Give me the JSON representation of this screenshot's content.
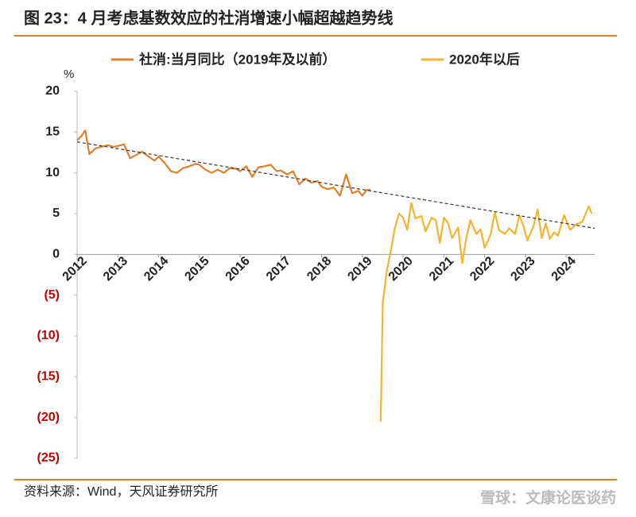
{
  "chart_data": {
    "type": "line",
    "title": "图 23：4 月考虑基数效应的社消增速小幅超越趋势线",
    "y_unit": "%",
    "source": "资料来源：Wind，天风证券研究所",
    "watermark": "雪球：文康论医谈药",
    "xlim": [
      2012,
      2024.7
    ],
    "xticks": [
      2012,
      2013,
      2014,
      2015,
      2016,
      2017,
      2018,
      2019,
      2020,
      2021,
      2022,
      2023,
      2024
    ],
    "ylim": [
      -25,
      20
    ],
    "yticks": [
      20,
      15,
      10,
      5,
      0,
      {
        "value": -5,
        "label": "(5)"
      },
      {
        "value": -10,
        "label": "(10)"
      },
      {
        "value": -15,
        "label": "(15)"
      },
      {
        "value": -20,
        "label": "(20)"
      },
      {
        "value": -25,
        "label": "(25)"
      }
    ],
    "negative_tick_color": "#c00000",
    "series": [
      {
        "name": "社消:当月同比（2019年及以前）",
        "color": "#e0802c",
        "x": [
          2012.0,
          2012.1,
          2012.2,
          2012.3,
          2012.45,
          2012.6,
          2012.75,
          2012.9,
          2013.0,
          2013.15,
          2013.3,
          2013.45,
          2013.6,
          2013.75,
          2013.9,
          2014.0,
          2014.15,
          2014.3,
          2014.45,
          2014.6,
          2014.75,
          2014.9,
          2015.0,
          2015.15,
          2015.3,
          2015.45,
          2015.6,
          2015.75,
          2015.9,
          2016.0,
          2016.15,
          2016.3,
          2016.45,
          2016.6,
          2016.75,
          2016.9,
          2017.0,
          2017.15,
          2017.3,
          2017.45,
          2017.6,
          2017.75,
          2017.9,
          2018.0,
          2018.15,
          2018.3,
          2018.45,
          2018.6,
          2018.75,
          2018.9,
          2019.0,
          2019.1,
          2019.2
        ],
        "values": [
          14.0,
          14.5,
          15.2,
          12.3,
          13.0,
          13.2,
          13.4,
          13.2,
          13.3,
          13.5,
          11.8,
          12.2,
          12.6,
          12.0,
          11.5,
          12.0,
          11.2,
          10.2,
          10.0,
          10.6,
          10.8,
          11.1,
          11.0,
          10.4,
          10.0,
          10.4,
          10.0,
          10.6,
          10.5,
          10.2,
          10.8,
          9.5,
          10.7,
          10.8,
          11.0,
          10.2,
          10.3,
          9.8,
          10.2,
          8.6,
          9.3,
          8.8,
          9.0,
          8.3,
          8.0,
          8.2,
          7.2,
          9.8,
          7.5,
          7.8,
          7.2,
          7.9,
          7.9
        ]
      },
      {
        "name": "2020年以后",
        "color": "#f2b531",
        "x": [
          2019.45,
          2019.5,
          2019.6,
          2019.7,
          2019.8,
          2019.9,
          2020.0,
          2020.1,
          2020.2,
          2020.3,
          2020.45,
          2020.55,
          2020.7,
          2020.8,
          2020.9,
          2021.0,
          2021.1,
          2021.2,
          2021.35,
          2021.45,
          2021.55,
          2021.65,
          2021.8,
          2021.9,
          2022.0,
          2022.15,
          2022.25,
          2022.35,
          2022.5,
          2022.6,
          2022.75,
          2022.85,
          2022.95,
          2023.05,
          2023.2,
          2023.3,
          2023.4,
          2023.5,
          2023.6,
          2023.7,
          2023.8,
          2023.95,
          2024.1,
          2024.25,
          2024.4,
          2024.55,
          2024.63
        ],
        "values": [
          -20.5,
          -6.0,
          -2.0,
          0.5,
          3.3,
          5.0,
          4.5,
          3.0,
          6.3,
          4.4,
          4.7,
          2.8,
          4.5,
          4.2,
          1.4,
          4.5,
          3.9,
          2.0,
          3.3,
          -1.1,
          2.0,
          4.2,
          2.5,
          3.1,
          0.8,
          2.5,
          5.2,
          3.0,
          2.5,
          3.2,
          2.5,
          4.8,
          3.5,
          1.7,
          3.5,
          5.5,
          2.0,
          3.8,
          1.9,
          2.7,
          2.3,
          4.8,
          3.0,
          3.7,
          4.0,
          5.9,
          5.0
        ]
      }
    ],
    "trend": {
      "x": [
        2012.0,
        2024.7
      ],
      "values": [
        13.8,
        3.2
      ],
      "color": "#333333"
    }
  }
}
